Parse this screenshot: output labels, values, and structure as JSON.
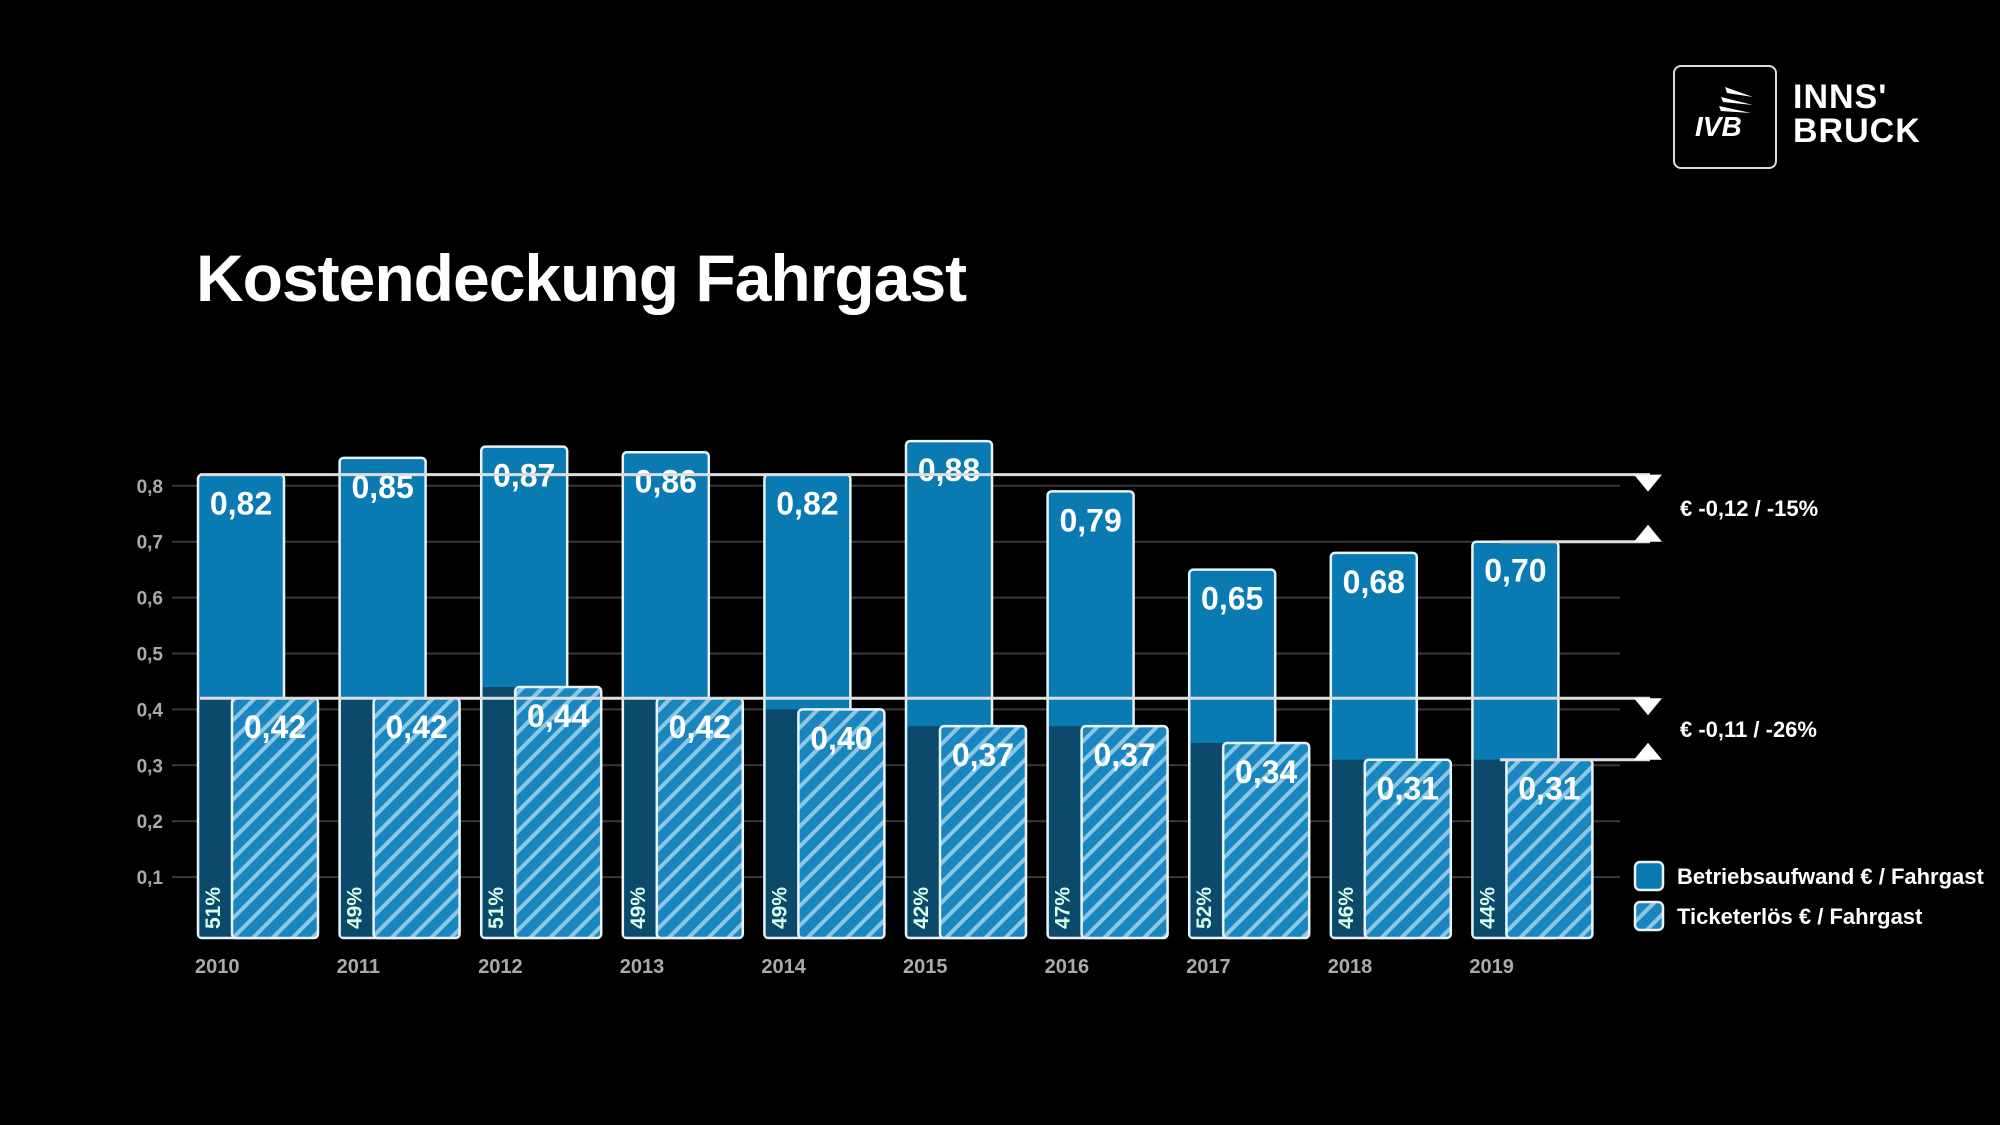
{
  "logo": {
    "mark": "IVB",
    "city_line1": "INNS'",
    "city_line2": "BRUCK"
  },
  "chart_data": {
    "type": "bar",
    "title": "Kostendeckung Fahrgast",
    "categories": [
      "2010",
      "2011",
      "2012",
      "2013",
      "2014",
      "2015",
      "2016",
      "2017",
      "2018",
      "2019"
    ],
    "series": [
      {
        "name": "Betriebsaufwand € / Fahrgast",
        "values": [
          0.82,
          0.85,
          0.87,
          0.86,
          0.82,
          0.88,
          0.79,
          0.65,
          0.68,
          0.7
        ],
        "labels": [
          "0,82",
          "0,85",
          "0,87",
          "0,86",
          "0,82",
          "0,88",
          "0,79",
          "0,65",
          "0,68",
          "0,70"
        ]
      },
      {
        "name": "Ticketerlös € / Fahrgast",
        "values": [
          0.42,
          0.42,
          0.44,
          0.42,
          0.4,
          0.37,
          0.37,
          0.34,
          0.31,
          0.31
        ],
        "labels": [
          "0,42",
          "0,42",
          "0,44",
          "0,42",
          "0,40",
          "0,37",
          "0,37",
          "0,34",
          "0,31",
          "0,31"
        ]
      }
    ],
    "coverage_percent": [
      "51%",
      "49%",
      "51%",
      "49%",
      "49%",
      "42%",
      "47%",
      "52%",
      "46%",
      "44%"
    ],
    "yticks": [
      0.1,
      0.2,
      0.3,
      0.4,
      0.5,
      0.6,
      0.7,
      0.8
    ],
    "ytick_labels": [
      "0,1",
      "0,2",
      "0,3",
      "0,4",
      "0,5",
      "0,6",
      "0,7",
      "0,8"
    ],
    "ylim": [
      0,
      0.9
    ],
    "grid": true,
    "legend": "bottom-right",
    "annotations": [
      {
        "text": "€ -0,12 / -15%",
        "from": 0.82,
        "to": 0.7
      },
      {
        "text": "€ -0,11 / -26%",
        "from": 0.42,
        "to": 0.31
      }
    ],
    "colors": {
      "main": "#0a7ab3",
      "main_dark": "#0b4a6b",
      "hatch": "#1a86bf",
      "stripe": "#8cc8e6",
      "border": "#e8f2f7",
      "grid": "#3a3a3a"
    }
  }
}
